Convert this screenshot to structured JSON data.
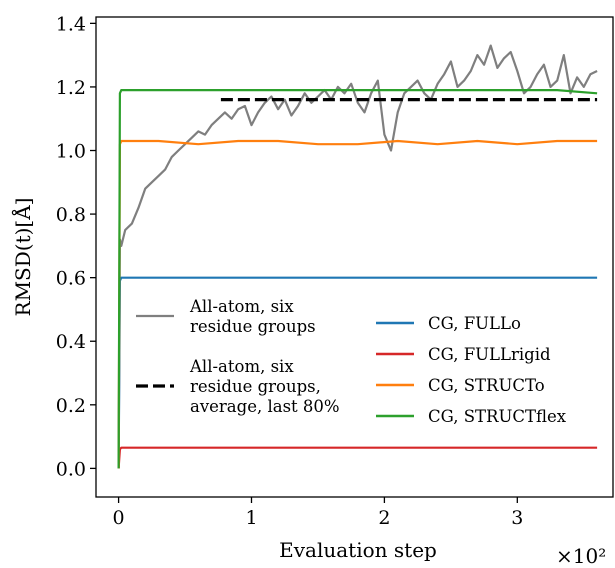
{
  "chart_data": {
    "type": "line",
    "xlabel": "Evaluation step",
    "ylabel": "RMSD(t)[Å]",
    "x_multiplier_label": "×10²",
    "xlim": [
      -0.17,
      3.72
    ],
    "ylim": [
      -0.09,
      1.42
    ],
    "x_ticks": [
      0,
      1,
      2,
      3
    ],
    "x_tick_labels": [
      "0",
      "1",
      "2",
      "3"
    ],
    "y_ticks": [
      0.0,
      0.2,
      0.4,
      0.6,
      0.8,
      1.0,
      1.2,
      1.4
    ],
    "y_tick_labels": [
      "0.0",
      "0.2",
      "0.4",
      "0.6",
      "0.8",
      "1.0",
      "1.2",
      "1.4"
    ],
    "legend_left": [
      {
        "label_lines": [
          "All-atom, six",
          "residue groups"
        ],
        "style": "solid",
        "color": "#7f7f7f"
      },
      {
        "label_lines": [
          "All-atom, six",
          "residue groups,",
          "average, last 80%"
        ],
        "style": "dashed",
        "color": "#000000"
      }
    ],
    "legend_right": [
      {
        "label": "CG, FULLo",
        "color": "#1f77b4"
      },
      {
        "label": "CG, FULLrigid",
        "color": "#d62728"
      },
      {
        "label": "CG, STRUCTo",
        "color": "#ff7f0e"
      },
      {
        "label": "CG, STRUCTflex",
        "color": "#2ca02c"
      }
    ],
    "series": [
      {
        "name": "All-atom, six residue groups",
        "color": "#7f7f7f",
        "x": [
          0,
          0.01,
          0.02,
          0.05,
          0.1,
          0.15,
          0.2,
          0.25,
          0.3,
          0.35,
          0.4,
          0.45,
          0.5,
          0.55,
          0.6,
          0.65,
          0.7,
          0.75,
          0.8,
          0.85,
          0.9,
          0.95,
          1.0,
          1.05,
          1.1,
          1.15,
          1.2,
          1.25,
          1.3,
          1.35,
          1.4,
          1.45,
          1.5,
          1.55,
          1.6,
          1.65,
          1.7,
          1.75,
          1.8,
          1.85,
          1.9,
          1.95,
          2.0,
          2.05,
          2.1,
          2.15,
          2.2,
          2.25,
          2.3,
          2.35,
          2.4,
          2.45,
          2.5,
          2.55,
          2.6,
          2.65,
          2.7,
          2.75,
          2.8,
          2.85,
          2.9,
          2.95,
          3.0,
          3.05,
          3.1,
          3.15,
          3.2,
          3.25,
          3.3,
          3.35,
          3.4,
          3.45,
          3.5,
          3.55,
          3.6
        ],
        "y": [
          0.0,
          0.72,
          0.7,
          0.75,
          0.77,
          0.82,
          0.88,
          0.9,
          0.92,
          0.94,
          0.98,
          1.0,
          1.02,
          1.04,
          1.06,
          1.05,
          1.08,
          1.1,
          1.12,
          1.1,
          1.13,
          1.14,
          1.08,
          1.12,
          1.15,
          1.17,
          1.13,
          1.16,
          1.11,
          1.14,
          1.18,
          1.15,
          1.17,
          1.19,
          1.16,
          1.2,
          1.18,
          1.21,
          1.15,
          1.12,
          1.18,
          1.22,
          1.05,
          1.0,
          1.12,
          1.18,
          1.2,
          1.22,
          1.18,
          1.16,
          1.21,
          1.24,
          1.28,
          1.2,
          1.22,
          1.25,
          1.3,
          1.27,
          1.33,
          1.26,
          1.29,
          1.31,
          1.25,
          1.18,
          1.2,
          1.24,
          1.27,
          1.2,
          1.22,
          1.3,
          1.18,
          1.23,
          1.2,
          1.24,
          1.25
        ]
      },
      {
        "name": "All-atom, six residue groups, average, last 80%",
        "color": "#000000",
        "dashed": true,
        "x": [
          0.77,
          3.6
        ],
        "y": [
          1.16,
          1.16
        ]
      },
      {
        "name": "CG, FULLo",
        "color": "#1f77b4",
        "x": [
          0,
          0.01,
          0.02,
          0.3,
          0.6,
          0.9,
          1.2,
          1.5,
          1.8,
          2.1,
          2.4,
          2.7,
          3.0,
          3.3,
          3.6
        ],
        "y": [
          0.0,
          0.59,
          0.6,
          0.6,
          0.6,
          0.6,
          0.6,
          0.6,
          0.6,
          0.6,
          0.6,
          0.6,
          0.6,
          0.6,
          0.6
        ]
      },
      {
        "name": "CG, FULLrigid",
        "color": "#d62728",
        "x": [
          0,
          0.01,
          0.02,
          0.5,
          1.0,
          1.5,
          2.0,
          2.5,
          3.0,
          3.6
        ],
        "y": [
          0.0,
          0.06,
          0.065,
          0.065,
          0.065,
          0.065,
          0.065,
          0.065,
          0.065,
          0.065
        ]
      },
      {
        "name": "CG, STRUCTo",
        "color": "#ff7f0e",
        "x": [
          0,
          0.01,
          0.02,
          0.3,
          0.6,
          0.9,
          1.2,
          1.5,
          1.8,
          2.1,
          2.4,
          2.7,
          3.0,
          3.3,
          3.6
        ],
        "y": [
          0.0,
          1.02,
          1.03,
          1.03,
          1.02,
          1.03,
          1.03,
          1.02,
          1.02,
          1.03,
          1.02,
          1.03,
          1.02,
          1.03,
          1.03
        ]
      },
      {
        "name": "CG, STRUCTflex",
        "color": "#2ca02c",
        "x": [
          0,
          0.01,
          0.02,
          0.3,
          0.6,
          0.9,
          1.2,
          1.5,
          1.8,
          2.1,
          2.4,
          2.7,
          3.0,
          3.3,
          3.6
        ],
        "y": [
          0.0,
          1.18,
          1.19,
          1.19,
          1.19,
          1.19,
          1.19,
          1.19,
          1.19,
          1.19,
          1.19,
          1.19,
          1.19,
          1.19,
          1.18
        ]
      }
    ]
  }
}
